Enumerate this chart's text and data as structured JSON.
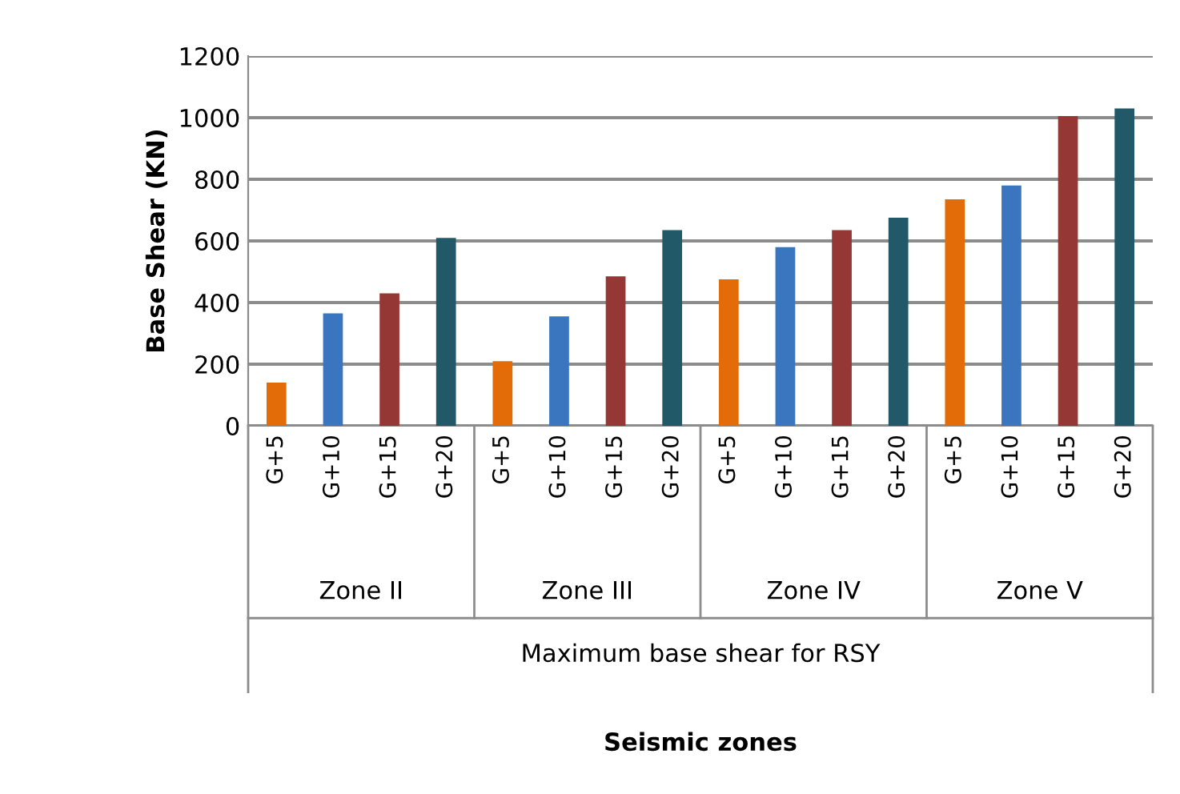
{
  "chart_data": {
    "type": "bar",
    "categories": [
      "G+5",
      "G+10",
      "G+15",
      "G+20",
      "G+5",
      "G+10",
      "G+15",
      "G+20",
      "G+5",
      "G+10",
      "G+15",
      "G+20",
      "G+5",
      "G+10",
      "G+15",
      "G+20"
    ],
    "values": [
      140,
      365,
      430,
      610,
      210,
      355,
      485,
      635,
      475,
      580,
      635,
      675,
      735,
      780,
      1005,
      1030
    ],
    "colors": [
      "#e36c09",
      "#3a76c0",
      "#953735",
      "#215968",
      "#e36c09",
      "#3a76c0",
      "#953735",
      "#215968",
      "#e36c09",
      "#3a76c0",
      "#953735",
      "#215968",
      "#e36c09",
      "#3a76c0",
      "#953735",
      "#215968"
    ],
    "ylabel": "Base Shear (KN)",
    "annotations": [
      "Zone II",
      "Zone III",
      "Zone IV",
      "Zone V",
      "Maximum base shear for RSY",
      "Seismic zones"
    ],
    "ylim": [
      0,
      1200
    ],
    "yticks": [
      0,
      200,
      400,
      600,
      800,
      1000,
      1200
    ],
    "grid": "y"
  }
}
